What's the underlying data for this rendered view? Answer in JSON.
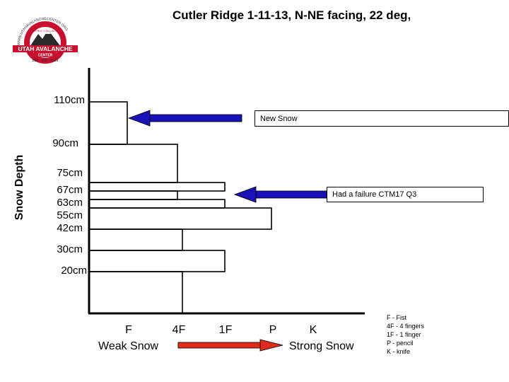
{
  "title": "Cutler Ridge 1-11-13, N-NE facing, 22 deg,",
  "logo": {
    "arc_text": "WWW.UTAHAVALANCHECENTER.ORG",
    "banner_small": "KEEPING YOU ON TOP",
    "name_line1": "UTAH AVALANCHE",
    "name_line2": "CENTER",
    "phone": "888 · 999 · 4019",
    "colors": {
      "red": "#c8102e",
      "dark": "#2a2a2a"
    }
  },
  "ylabel": "Snow Depth",
  "depth_labels": [
    "110cm",
    "90cm",
    "75cm",
    "67cm",
    "63cm",
    "55cm",
    "42cm",
    "30cm",
    "20cm"
  ],
  "hardness_labels": [
    "F",
    "4F",
    "1F",
    "P",
    "K"
  ],
  "weak_label": "Weak Snow",
  "strong_label": "Strong Snow",
  "callouts": {
    "new_snow": "New Snow",
    "failure": "Had a failure CTM17 Q3"
  },
  "legend": [
    "F - Fist",
    "4F - 4 fingers",
    "1F - 1 finger",
    "P - pencil",
    "K - knife"
  ],
  "layers": [
    {
      "top": "110cm",
      "bottom": "90cm",
      "hardness": "F"
    },
    {
      "top": "90cm",
      "bottom": "75cm",
      "hardness": "4F"
    },
    {
      "top": "75cm",
      "bottom": "67cm",
      "hardness": "1F"
    },
    {
      "top": "67cm",
      "bottom": "63cm",
      "hardness": "4F"
    },
    {
      "top": "63cm",
      "bottom": "55cm",
      "hardness": "1F"
    },
    {
      "top": "55cm",
      "bottom": "42cm",
      "hardness": "P"
    },
    {
      "top": "42cm",
      "bottom": "30cm",
      "hardness": "4F"
    },
    {
      "top": "30cm",
      "bottom": "20cm",
      "hardness": "1F"
    },
    {
      "top": "20cm",
      "bottom": "0cm",
      "hardness": "4F"
    }
  ],
  "colors": {
    "arrow_blue": "#1a12b8",
    "arrow_red": "#e02a1a"
  }
}
